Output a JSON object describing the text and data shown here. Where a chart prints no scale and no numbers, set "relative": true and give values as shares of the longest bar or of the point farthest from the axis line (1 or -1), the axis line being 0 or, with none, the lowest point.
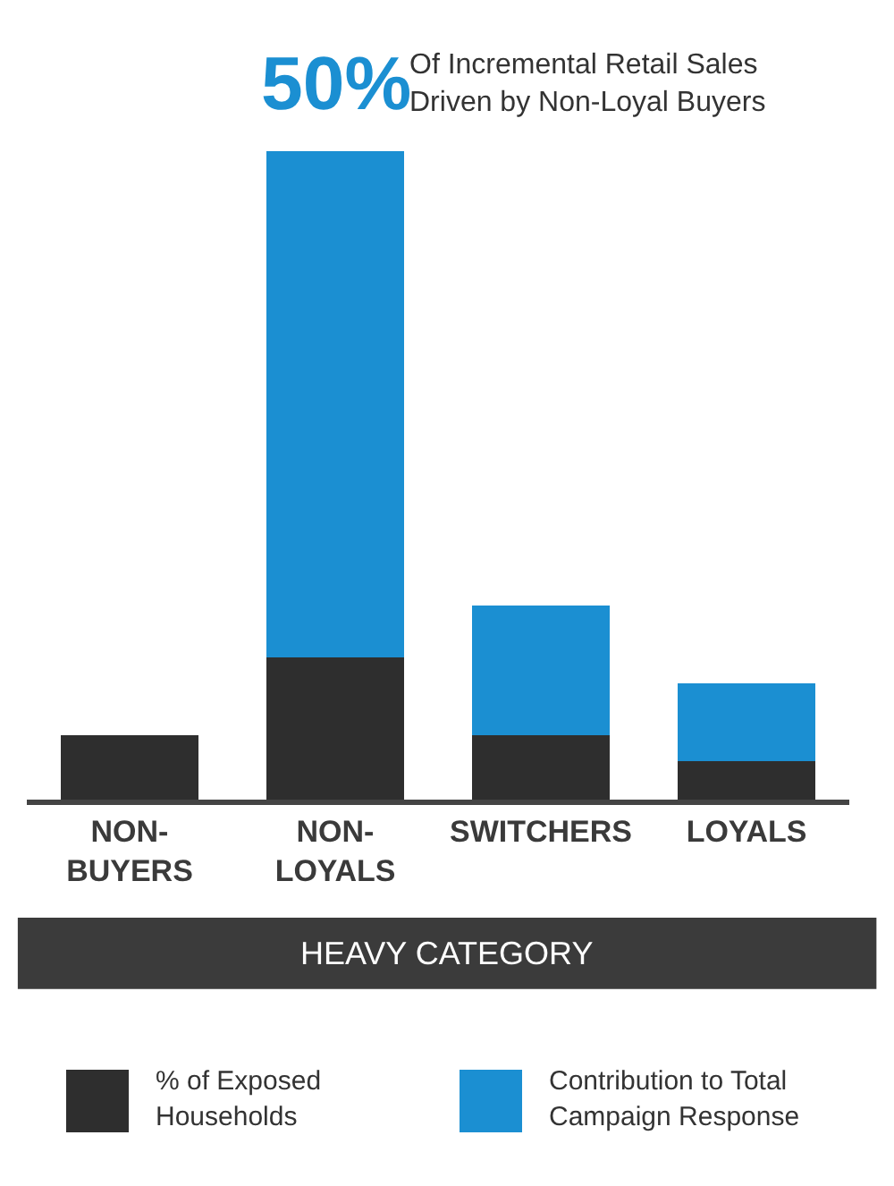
{
  "chart_data": {
    "type": "bar",
    "relative": true,
    "stacked": true,
    "categories": [
      "NON-\nBUYERS",
      "NON-\nLOYALS",
      "SWITCHERS",
      "LOYALS"
    ],
    "xlabel": "HEAVY CATEGORY",
    "series": [
      {
        "name": "% of Exposed\nHouseholds",
        "color": "#2e2e2e",
        "values": [
          0.1,
          0.22,
          0.1,
          0.06
        ]
      },
      {
        "name": "Contribution to Total\nCampaign Response",
        "color": "#1b8fd2",
        "values": [
          0,
          0.78,
          0.2,
          0.12
        ]
      }
    ],
    "annotations": [
      "50%",
      "Of Incremental Retail Sales\nDriven by Non-Loyal Buyers"
    ],
    "legend": "bottom",
    "grid": false
  }
}
